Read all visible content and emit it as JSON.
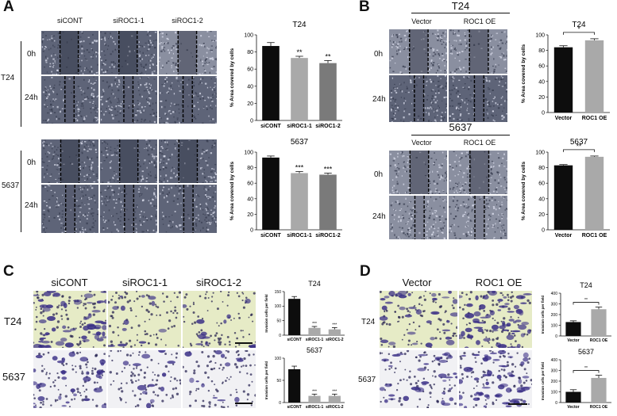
{
  "panels": {
    "A": {
      "label": "A",
      "columns": [
        "siCONT",
        "siROC1-1",
        "siROC1-2"
      ],
      "groups": [
        {
          "name": "T24",
          "rows": [
            "0h",
            "24h"
          ]
        },
        {
          "name": "5637",
          "rows": [
            "0h",
            "24h"
          ]
        }
      ]
    },
    "B": {
      "label": "B",
      "groups": [
        {
          "name": "T24",
          "columns": [
            "Vector",
            "ROC1 OE"
          ],
          "rows": [
            "0h",
            "24h"
          ]
        },
        {
          "name": "5637",
          "columns": [
            "Vector",
            "ROC1 OE"
          ],
          "rows": [
            "0h",
            "24h"
          ]
        }
      ]
    },
    "C": {
      "label": "C",
      "columns": [
        "siCONT",
        "siROC1-1",
        "siROC1-2"
      ],
      "rows": [
        "T24",
        "5637"
      ]
    },
    "D": {
      "label": "D",
      "columns": [
        "Vector",
        "ROC1 OE"
      ],
      "rows": [
        "T24",
        "5637"
      ]
    }
  },
  "colors": {
    "bar_black": "#0d0d0d",
    "bar_light_gray": "#a9a9a9",
    "bar_dark_gray": "#7a7a7a",
    "scratch_tile": "#5e6478",
    "scratch_tile_light": "#8a8fa0",
    "transwell_bg_green": "#e6ebc6",
    "transwell_bg_pale": "#f1f1f4",
    "crystal_violet": "#3a2f86"
  },
  "chart_data": [
    {
      "id": "A-T24",
      "type": "bar",
      "title": "T24",
      "ylabel": "% Area covered by cells",
      "categories": [
        "siCONT",
        "siROC1-1",
        "siROC1-2"
      ],
      "values": [
        87,
        73,
        67
      ],
      "errors": [
        4,
        2,
        3
      ],
      "annotations": [
        "",
        "**",
        "**"
      ],
      "bar_colors": [
        "#0d0d0d",
        "#a9a9a9",
        "#7a7a7a"
      ],
      "ylim": [
        0,
        100
      ],
      "yticks": [
        "0",
        "20",
        "40",
        "60",
        "80",
        "100"
      ],
      "grid": false
    },
    {
      "id": "A-5637",
      "type": "bar",
      "title": "5637",
      "ylabel": "% Area covered by cells",
      "categories": [
        "siCONT",
        "siROC1-1",
        "siROC1-2"
      ],
      "values": [
        93,
        73,
        71
      ],
      "errors": [
        2,
        2,
        2
      ],
      "annotations": [
        "",
        "***",
        "***"
      ],
      "bar_colors": [
        "#0d0d0d",
        "#a9a9a9",
        "#7a7a7a"
      ],
      "ylim": [
        0,
        100
      ],
      "yticks": [
        "0",
        "20",
        "40",
        "60",
        "80",
        "100"
      ],
      "grid": false
    },
    {
      "id": "B-T24",
      "type": "bar",
      "title": "T24",
      "ylabel": "% Area covered by cells",
      "categories": [
        "Vector",
        "ROC1 OE"
      ],
      "values": [
        84,
        93
      ],
      "errors": [
        2,
        2
      ],
      "bracket": "*",
      "bar_colors": [
        "#0d0d0d",
        "#a9a9a9"
      ],
      "ylim": [
        0,
        100
      ],
      "yticks": [
        "0",
        "20",
        "40",
        "60",
        "80",
        "100"
      ],
      "grid": false
    },
    {
      "id": "B-5637",
      "type": "bar",
      "title": "5637",
      "ylabel": "% Area covered by cells",
      "categories": [
        "Vector",
        "ROC1 OE"
      ],
      "values": [
        83,
        94
      ],
      "errors": [
        1,
        1
      ],
      "bracket": "**",
      "bar_colors": [
        "#0d0d0d",
        "#a9a9a9"
      ],
      "ylim": [
        0,
        100
      ],
      "yticks": [
        "0",
        "20",
        "40",
        "60",
        "80",
        "100"
      ],
      "grid": false
    },
    {
      "id": "C-T24",
      "type": "bar",
      "title": "T24",
      "ylabel": "Invasion cells per field",
      "categories": [
        "siCONT",
        "siROC1-1",
        "siROC1-2"
      ],
      "values": [
        125,
        25,
        20
      ],
      "errors": [
        8,
        5,
        6
      ],
      "annotations": [
        "",
        "***",
        "***"
      ],
      "bar_colors": [
        "#0d0d0d",
        "#a9a9a9",
        "#a9a9a9"
      ],
      "ylim": [
        0,
        150
      ],
      "yticks": [
        "0",
        "50",
        "100",
        "150"
      ],
      "grid": false
    },
    {
      "id": "C-5637",
      "type": "bar",
      "title": "5637",
      "ylabel": "Invasion cells per field",
      "categories": [
        "siCONT",
        "siROC1-1",
        "siROC1-2"
      ],
      "values": [
        75,
        15,
        15
      ],
      "errors": [
        7,
        4,
        4
      ],
      "annotations": [
        "",
        "***",
        "***"
      ],
      "bar_colors": [
        "#0d0d0d",
        "#a9a9a9",
        "#a9a9a9"
      ],
      "ylim": [
        0,
        100
      ],
      "yticks": [
        "0",
        "50",
        "100"
      ],
      "grid": false
    },
    {
      "id": "D-T24",
      "type": "bar",
      "title": "T24",
      "ylabel": "Invasion cells per field",
      "categories": [
        "Vector",
        "ROC1 OE"
      ],
      "values": [
        130,
        250
      ],
      "errors": [
        12,
        20
      ],
      "bracket": "**",
      "bar_colors": [
        "#0d0d0d",
        "#a9a9a9"
      ],
      "ylim": [
        0,
        400
      ],
      "yticks": [
        "0",
        "100",
        "200",
        "300",
        "400"
      ],
      "grid": false
    },
    {
      "id": "D-5637",
      "type": "bar",
      "title": "5637",
      "ylabel": "Invasion cells per field",
      "categories": [
        "Vector",
        "ROC1 OE"
      ],
      "values": [
        100,
        230
      ],
      "errors": [
        20,
        25
      ],
      "bracket": "**",
      "bar_colors": [
        "#0d0d0d",
        "#a9a9a9"
      ],
      "ylim": [
        0,
        400
      ],
      "yticks": [
        "0",
        "100",
        "200",
        "300",
        "400"
      ],
      "grid": false
    }
  ]
}
